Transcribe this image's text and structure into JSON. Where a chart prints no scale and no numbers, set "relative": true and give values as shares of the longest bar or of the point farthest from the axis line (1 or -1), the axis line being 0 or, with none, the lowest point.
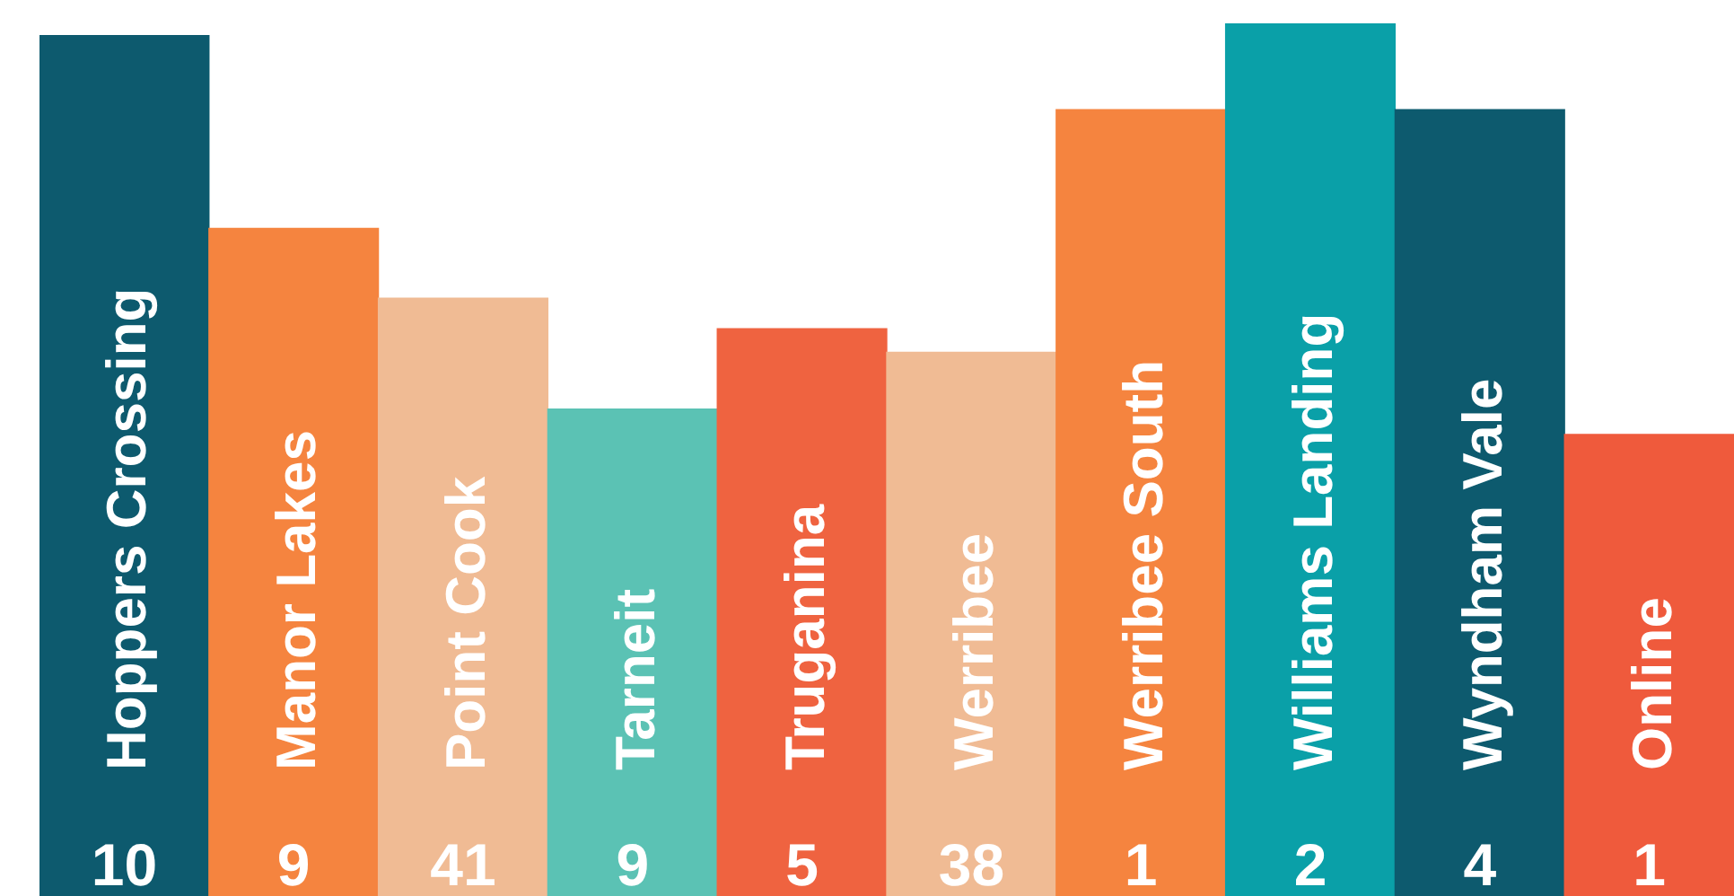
{
  "chart_data": {
    "type": "bar",
    "relative": true,
    "tick_labels": false,
    "categories": [
      "Hoppers Crossing",
      "Manor Lakes",
      "Point Cook",
      "Tarneit",
      "Truganina",
      "Werribee",
      "Werribee South",
      "Williams Landing",
      "Wyndham Vale",
      "Online"
    ],
    "values": [
      0.986,
      0.765,
      0.685,
      0.558,
      0.65,
      0.623,
      0.901,
      1,
      0.901,
      0.529
    ],
    "colors": [
      "#0d5a6e",
      "#f5843f",
      "#f0bb94",
      "#5bc2b4",
      "#ef6340",
      "#f0bb94",
      "#f5843f",
      "#0aa0a8",
      "#0d5a6e",
      "#ef5a3c"
    ],
    "annotations": [
      "10",
      "9",
      "41",
      "9",
      "5",
      "38",
      "1",
      "2",
      "4",
      "1"
    ]
  }
}
